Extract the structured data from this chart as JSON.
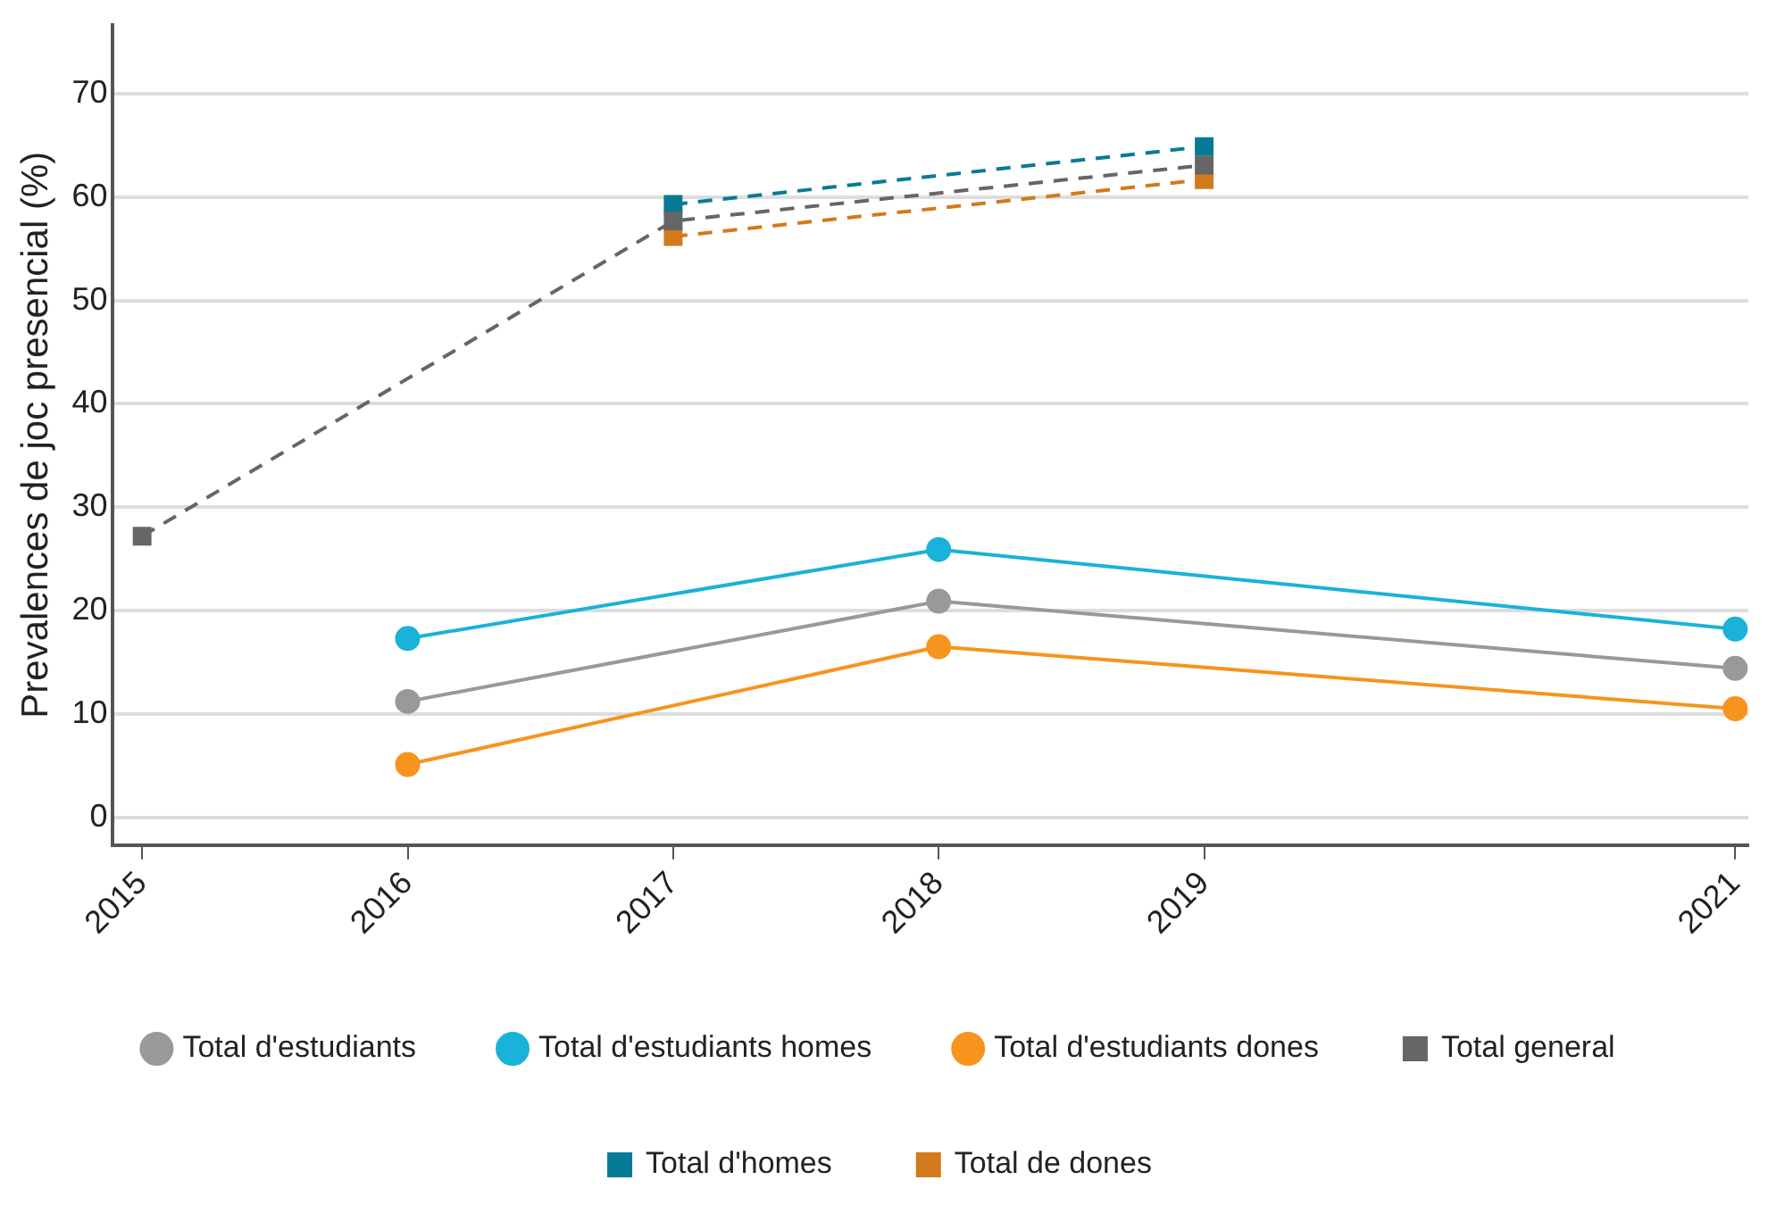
{
  "chart_data": {
    "type": "line",
    "ylabel": "Prevalences de joc presencial (%)",
    "xlim": [
      2014.89,
      2021.05
    ],
    "xticks": [
      2015,
      2016,
      2017,
      2018,
      2019,
      2021
    ],
    "ylim": [
      -2.7,
      76.7
    ],
    "yticks": [
      0,
      10,
      20,
      30,
      40,
      50,
      60,
      70
    ],
    "grid": "y",
    "legend": "bottom",
    "series": [
      {
        "name": "Total d'estudiants",
        "color": "#999999",
        "marker": "circle",
        "line_style": "solid",
        "x": [
          2016,
          2018,
          2021
        ],
        "values": [
          11.2,
          20.9,
          14.4
        ]
      },
      {
        "name": "Total d'estudiants homes",
        "color": "#1ab2d8",
        "marker": "circle",
        "line_style": "solid",
        "x": [
          2016,
          2018,
          2021
        ],
        "values": [
          17.3,
          25.9,
          18.2
        ]
      },
      {
        "name": "Total d'estudiants dones",
        "color": "#f7941d",
        "marker": "circle",
        "line_style": "solid",
        "x": [
          2016,
          2018,
          2021
        ],
        "values": [
          5.1,
          16.5,
          10.5
        ]
      },
      {
        "name": "Total general",
        "color": "#666666",
        "marker": "square",
        "line_style": "dashed",
        "x": [
          2015,
          2017,
          2019
        ],
        "values": [
          27.2,
          57.7,
          63.1
        ]
      },
      {
        "name": "Total d'homes",
        "color": "#077b95",
        "marker": "square",
        "line_style": "dashed",
        "x": [
          2017,
          2019
        ],
        "values": [
          59.3,
          64.9
        ]
      },
      {
        "name": "Total de dones",
        "color": "#d27a1c",
        "marker": "square",
        "line_style": "dashed",
        "x": [
          2017,
          2019
        ],
        "values": [
          56.2,
          61.7
        ]
      }
    ]
  }
}
